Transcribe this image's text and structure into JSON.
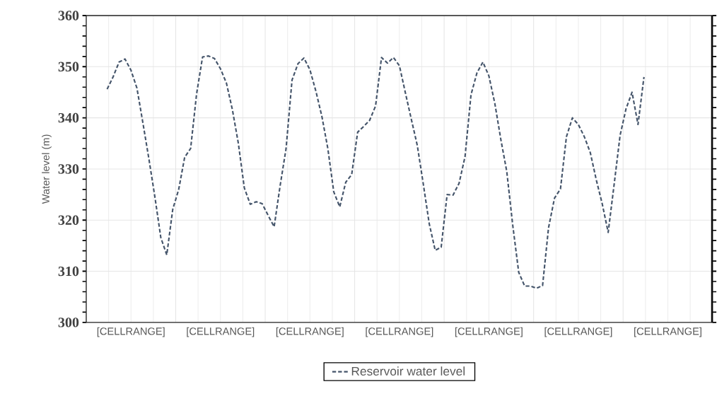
{
  "chart_data": {
    "type": "line",
    "ylabel": "Water level (m)",
    "categories": [
      null,
      null,
      null,
      null,
      null,
      null,
      null,
      "[CELLRANGE]",
      null,
      null,
      null,
      null,
      null,
      null,
      null,
      null,
      null,
      null,
      null,
      null,
      null,
      null,
      "[CELLRANGE]",
      null,
      null,
      null,
      null,
      null,
      null,
      null,
      null,
      null,
      null,
      null,
      null,
      null,
      null,
      "[CELLRANGE]",
      null,
      null,
      null,
      null,
      null,
      null,
      null,
      null,
      null,
      null,
      null,
      null,
      null,
      null,
      "[CELLRANGE]",
      null,
      null,
      null,
      null,
      null,
      null,
      null,
      null,
      null,
      null,
      null,
      null,
      null,
      null,
      "[CELLRANGE]",
      null,
      null,
      null,
      null,
      null,
      null,
      null,
      null,
      null,
      null,
      null,
      null,
      null,
      null,
      "[CELLRANGE]",
      null,
      null,
      null,
      null,
      null,
      null,
      null,
      null,
      null,
      null,
      null,
      null,
      null,
      null,
      "[CELLRANGE]",
      null,
      null,
      null,
      null,
      null,
      null,
      null
    ],
    "series": [
      {
        "name": "Reservoir water level",
        "color": "#44546a",
        "line_style": "dashed",
        "values": [
          null,
          null,
          null,
          345.6,
          348.0,
          350.9,
          351.5,
          349.3,
          345.8,
          339.0,
          332.0,
          324.6,
          316.6,
          313.2,
          322.1,
          326.0,
          332.3,
          334.0,
          344.7,
          351.9,
          352.1,
          351.6,
          349.6,
          346.8,
          341.6,
          335.0,
          326.3,
          323.1,
          323.6,
          323.2,
          320.9,
          318.7,
          326.7,
          334.0,
          347.4,
          350.6,
          351.7,
          349.4,
          345.2,
          340.3,
          334.0,
          325.5,
          322.6,
          327.4,
          328.9,
          337.2,
          338.3,
          339.5,
          342.3,
          351.8,
          350.7,
          351.8,
          350.2,
          344.9,
          339.7,
          334.6,
          327.1,
          319.3,
          314.1,
          314.7,
          325.0,
          324.9,
          327.2,
          332.4,
          344.5,
          348.8,
          350.9,
          348.2,
          342.8,
          335.8,
          329.5,
          319.0,
          309.8,
          307.1,
          307.1,
          306.7,
          307.2,
          318.5,
          324.3,
          326.1,
          336.3,
          340.0,
          338.7,
          336.3,
          333.2,
          327.9,
          323.2,
          317.6,
          327.0,
          336.6,
          341.8,
          345.0,
          338.7,
          348.0,
          null,
          null,
          null,
          null,
          null,
          null,
          null,
          null,
          null,
          null,
          null
        ]
      }
    ],
    "ylim": [
      300,
      360
    ],
    "yticks": [
      300,
      310,
      320,
      330,
      340,
      350,
      360
    ],
    "grid": true,
    "legend": "bottom"
  }
}
